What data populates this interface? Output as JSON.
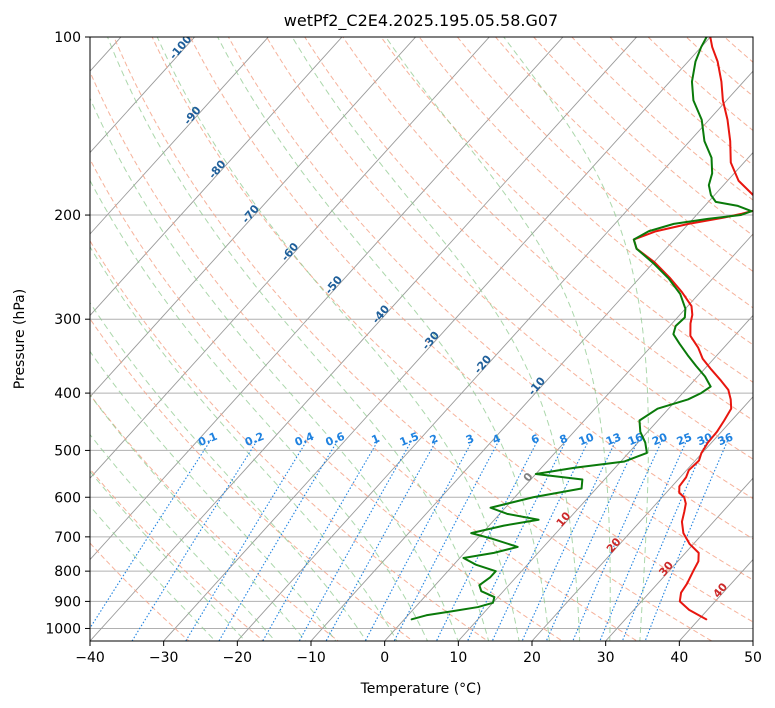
{
  "chart_data": {
    "type": "skew-t",
    "title": "wetPf2_C2E4.2025.195.05.58.G07",
    "xlabel": "Temperature (°C)",
    "ylabel": "Pressure (hPa)",
    "xlim": [
      -40,
      50
    ],
    "ylim": [
      1050,
      100
    ],
    "y_scale": "log",
    "grid": true,
    "x_ticks": [
      -40,
      -30,
      -20,
      -10,
      0,
      10,
      20,
      30,
      40,
      50
    ],
    "x_tick_labels": [
      "−40",
      "−30",
      "−20",
      "−10",
      "0",
      "10",
      "20",
      "30",
      "40",
      "50"
    ],
    "y_ticks": [
      1000,
      900,
      800,
      700,
      600,
      500,
      400,
      300,
      200,
      100
    ],
    "y_tick_labels": [
      "1000",
      "900",
      "800",
      "700",
      "600",
      "500",
      "400",
      "300",
      "200",
      "100"
    ],
    "colors": {
      "temperature": "#e8160f",
      "dewpoint": "#0a7a0a",
      "isotherm": "#9a9a9a",
      "dry_adiabat": "#f4a58a",
      "moist_adiabat": "#8fc98f",
      "mixing_ratio": "#1f82e0",
      "theta_e_label": "#1f5f9a",
      "dry_adiabat_label": "#cc2a2a",
      "zero_label": "#808080"
    },
    "series": [
      {
        "name": "Temperature",
        "points": [
          [
            41.0,
            965
          ],
          [
            37.5,
            930
          ],
          [
            35.2,
            900
          ],
          [
            34.3,
            870
          ],
          [
            34.0,
            840
          ],
          [
            33.3,
            800
          ],
          [
            32.8,
            770
          ],
          [
            31.8,
            745
          ],
          [
            29.5,
            720
          ],
          [
            27.3,
            690
          ],
          [
            25.7,
            660
          ],
          [
            24.8,
            635
          ],
          [
            24.0,
            615
          ],
          [
            23.0,
            600
          ],
          [
            21.8,
            590
          ],
          [
            21.0,
            575
          ],
          [
            20.8,
            555
          ],
          [
            20.3,
            540
          ],
          [
            20.5,
            520
          ],
          [
            19.9,
            505
          ],
          [
            19.5,
            485
          ],
          [
            19.4,
            465
          ],
          [
            19.0,
            445
          ],
          [
            18.5,
            425
          ],
          [
            17.3,
            410
          ],
          [
            15.8,
            395
          ],
          [
            13.5,
            380
          ],
          [
            11.0,
            365
          ],
          [
            8.5,
            350
          ],
          [
            6.5,
            335
          ],
          [
            4.0,
            320
          ],
          [
            2.5,
            305
          ],
          [
            1.7,
            295
          ],
          [
            0.5,
            285
          ],
          [
            -2.5,
            270
          ],
          [
            -6.0,
            255
          ],
          [
            -10.0,
            240
          ],
          [
            -14.0,
            228
          ],
          [
            -15.5,
            220
          ],
          [
            -13.5,
            213
          ],
          [
            -10.0,
            207
          ],
          [
            -6.0,
            202
          ],
          [
            -4.0,
            199
          ],
          [
            -2.5,
            196
          ],
          [
            -3.0,
            190
          ],
          [
            -5.5,
            183
          ],
          [
            -8.5,
            175
          ],
          [
            -11.8,
            163
          ],
          [
            -14.5,
            150
          ],
          [
            -17.5,
            138
          ],
          [
            -20.5,
            128
          ],
          [
            -23.0,
            119
          ],
          [
            -26.0,
            110
          ],
          [
            -28.5,
            104
          ],
          [
            -30.0,
            100
          ]
        ]
      },
      {
        "name": "Dewpoint",
        "points": [
          [
            1.0,
            965
          ],
          [
            2.5,
            950
          ],
          [
            5.5,
            935
          ],
          [
            8.5,
            920
          ],
          [
            10.0,
            905
          ],
          [
            9.5,
            885
          ],
          [
            7.0,
            865
          ],
          [
            6.0,
            845
          ],
          [
            6.5,
            820
          ],
          [
            6.5,
            800
          ],
          [
            3.0,
            780
          ],
          [
            0.5,
            760
          ],
          [
            4.0,
            745
          ],
          [
            6.5,
            728
          ],
          [
            2.0,
            705
          ],
          [
            -1.5,
            690
          ],
          [
            2.0,
            670
          ],
          [
            6.0,
            655
          ],
          [
            1.0,
            640
          ],
          [
            -2.0,
            625
          ],
          [
            2.5,
            600
          ],
          [
            8.0,
            580
          ],
          [
            7.0,
            560
          ],
          [
            0.0,
            548
          ],
          [
            4.5,
            535
          ],
          [
            10.5,
            522
          ],
          [
            12.5,
            505
          ],
          [
            11.0,
            485
          ],
          [
            9.0,
            465
          ],
          [
            7.5,
            445
          ],
          [
            8.5,
            425
          ],
          [
            11.5,
            410
          ],
          [
            12.5,
            400
          ],
          [
            13.0,
            390
          ],
          [
            11.0,
            375
          ],
          [
            8.5,
            360
          ],
          [
            6.0,
            345
          ],
          [
            3.5,
            330
          ],
          [
            1.5,
            318
          ],
          [
            0.8,
            308
          ],
          [
            1.0,
            298
          ],
          [
            0.0,
            288
          ],
          [
            -2.5,
            272
          ],
          [
            -6.0,
            256
          ],
          [
            -10.0,
            241
          ],
          [
            -14.0,
            228
          ],
          [
            -15.5,
            220
          ],
          [
            -14.5,
            213
          ],
          [
            -12.0,
            207
          ],
          [
            -8.0,
            203
          ],
          [
            -4.0,
            200
          ],
          [
            -3.0,
            197
          ],
          [
            -5.5,
            193
          ],
          [
            -9.0,
            190
          ],
          [
            -10.5,
            185
          ],
          [
            -12.0,
            178
          ],
          [
            -13.0,
            170
          ],
          [
            -15.0,
            160
          ],
          [
            -18.0,
            150
          ],
          [
            -21.0,
            138
          ],
          [
            -24.5,
            128
          ],
          [
            -27.0,
            119
          ],
          [
            -29.0,
            110
          ],
          [
            -30.0,
            104
          ],
          [
            -30.5,
            100
          ]
        ]
      }
    ],
    "mixing_ratio_lines": [
      "0.1",
      "0.2",
      "0.4",
      "0.6",
      "1",
      "1.5",
      "2",
      "3",
      "4",
      "6",
      "8",
      "10",
      "13",
      "16",
      "20",
      "25",
      "30",
      "36"
    ],
    "dry_adiabat_labels": [
      "0",
      "10",
      "20",
      "30",
      "40"
    ],
    "theta_e_labels": [
      "-100",
      "-90",
      "-80",
      "-70",
      "-60",
      "-50",
      "-40",
      "-30",
      "-20",
      "-10"
    ]
  }
}
